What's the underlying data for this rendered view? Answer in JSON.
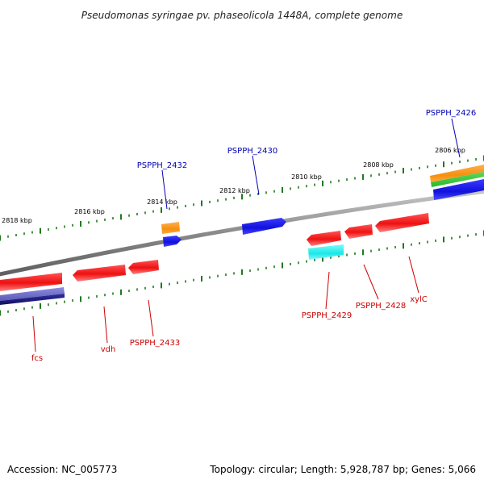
{
  "title": "Pseudomonas syringae pv. phaseolicola 1448A, complete genome",
  "footer": {
    "accession": "Accession: NC_005773",
    "topology": "Topology: circular; Length: 5,928,787 bp; Genes: 5,066"
  },
  "colors": {
    "backbone": "#8a8a8a",
    "tick": "#1f7a1f",
    "forward_label": "#0000b3",
    "reverse_label": "#cc0000",
    "red_gene": "#ee1111",
    "blue_gene": "#1111dd",
    "orange_feature": "#f58f0f",
    "green_feature": "#2bb82b",
    "cyan_feature": "#18e8e8",
    "navy_feature": "#16167a",
    "slate_feature": "#6666c4"
  },
  "scale": {
    "unit": "kbp",
    "labels": [
      {
        "kbp": 2818,
        "text": "2818 kbp"
      },
      {
        "kbp": 2816,
        "text": "2816 kbp"
      },
      {
        "kbp": 2814,
        "text": "2814 kbp"
      },
      {
        "kbp": 2812,
        "text": "2812 kbp"
      },
      {
        "kbp": 2810,
        "text": "2810 kbp"
      },
      {
        "kbp": 2808,
        "text": "2808 kbp"
      },
      {
        "kbp": 2806,
        "text": "2806 kbp"
      }
    ]
  },
  "features": [
    {
      "label": "PSPPH_2426",
      "strand": "forward",
      "color": "blue_gene"
    },
    {
      "label": "PSPPH_2430",
      "strand": "forward",
      "color": "blue_gene"
    },
    {
      "label": "PSPPH_2432",
      "strand": "forward",
      "color": "blue_gene"
    },
    {
      "label": "xylC",
      "strand": "reverse",
      "color": "red_gene"
    },
    {
      "label": "PSPPH_2428",
      "strand": "reverse",
      "color": "red_gene"
    },
    {
      "label": "PSPPH_2429",
      "strand": "reverse",
      "color": "red_gene"
    },
    {
      "label": "PSPPH_2433",
      "strand": "reverse",
      "color": "red_gene"
    },
    {
      "label": "vdh",
      "strand": "reverse",
      "color": "red_gene"
    },
    {
      "label": "fcs",
      "strand": "reverse",
      "color": "red_gene"
    }
  ]
}
